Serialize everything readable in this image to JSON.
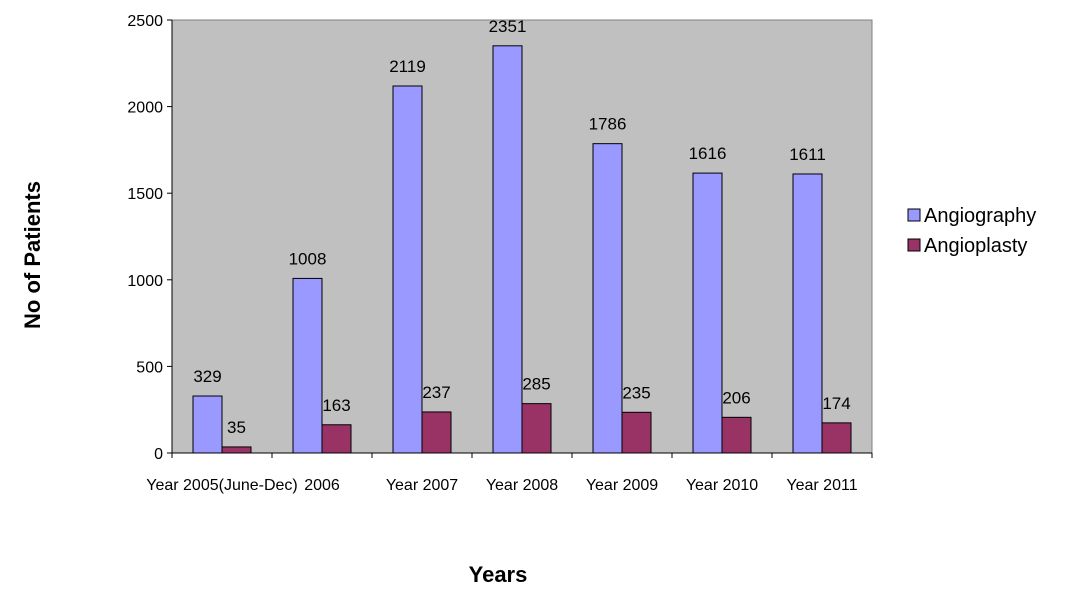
{
  "chart_data": {
    "type": "bar",
    "categories": [
      "Year 2005(June-Dec)",
      "2006",
      "Year 2007",
      "Year 2008",
      "Year 2009",
      "Year 2010",
      "Year 2011"
    ],
    "series": [
      {
        "name": "Angiography",
        "values": [
          329,
          1008,
          2119,
          2351,
          1786,
          1616,
          1611
        ],
        "color": "#9999ff"
      },
      {
        "name": "Angioplasty",
        "values": [
          35,
          163,
          237,
          285,
          235,
          206,
          174
        ],
        "color": "#993366"
      }
    ],
    "xlabel": "Years",
    "ylabel": "No of Patients",
    "ylim": [
      0,
      2500
    ],
    "yticks": [
      0,
      500,
      1000,
      1500,
      2000,
      2500
    ],
    "plot_background": "#c0c0c0",
    "grid": false,
    "legend_position": "right"
  }
}
